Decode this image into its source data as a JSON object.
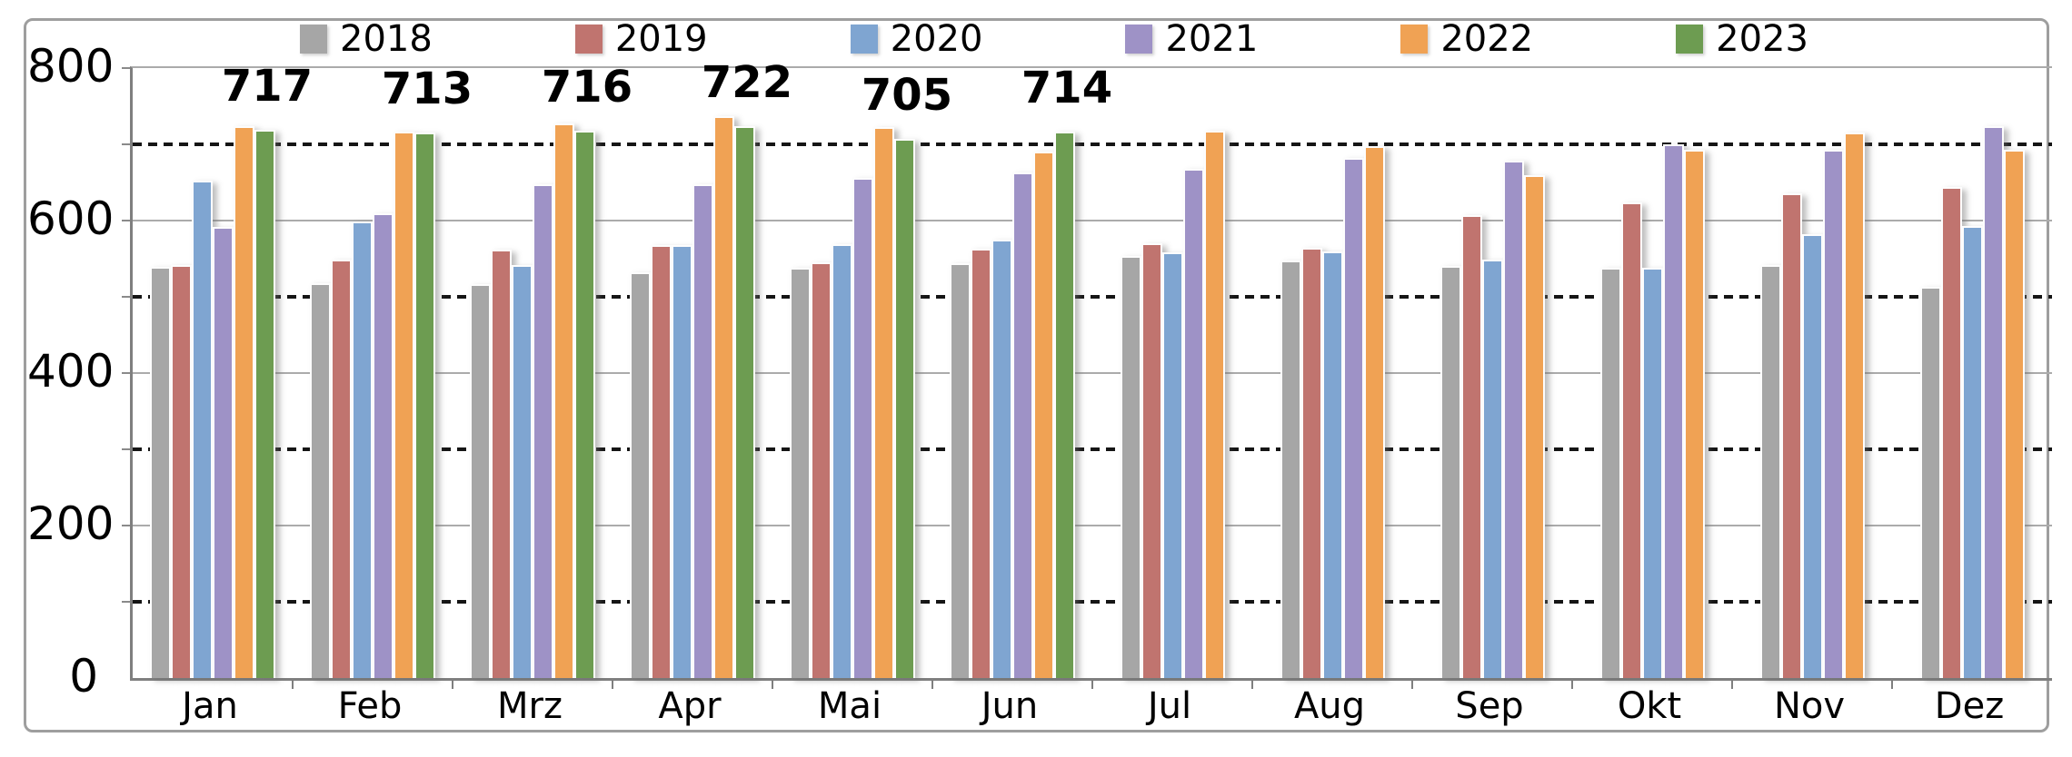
{
  "chart_data": {
    "type": "bar",
    "title": "",
    "xlabel": "",
    "ylabel": "",
    "categories": [
      "Jan",
      "Feb",
      "Mrz",
      "Apr",
      "Mai",
      "Jun",
      "Jul",
      "Aug",
      "Sep",
      "Okt",
      "Nov",
      "Dez"
    ],
    "series": [
      {
        "name": "2018",
        "color": "#a6a6a6",
        "values": [
          537,
          516,
          514,
          530,
          536,
          542,
          551,
          545,
          538,
          536,
          539,
          511
        ]
      },
      {
        "name": "2019",
        "color": "#c0746f",
        "values": [
          539,
          546,
          560,
          565,
          543,
          561,
          568,
          562,
          605,
          622,
          633,
          642
        ]
      },
      {
        "name": "2020",
        "color": "#7fa5d1",
        "values": [
          650,
          597,
          539,
          565,
          567,
          573,
          556,
          557,
          547,
          536,
          580,
          590
        ]
      },
      {
        "name": "2021",
        "color": "#9e92c6",
        "values": [
          589,
          607,
          645,
          645,
          654,
          661,
          666,
          680,
          676,
          698,
          690,
          722
        ]
      },
      {
        "name": "2022",
        "color": "#f0a254",
        "values": [
          721,
          714,
          725,
          735,
          720,
          688,
          715,
          695,
          657,
          690,
          713,
          690
        ]
      },
      {
        "name": "2023",
        "color": "#6d9c51",
        "values": [
          717,
          713,
          716,
          722,
          705,
          714,
          null,
          null,
          null,
          null,
          null,
          null
        ]
      }
    ],
    "bar_labels": {
      "series": "2023",
      "values": [
        717,
        713,
        716,
        722,
        705,
        714,
        null,
        null,
        null,
        null,
        null,
        null
      ]
    },
    "y_axis": {
      "min": 0,
      "max": 800,
      "major_ticks": [
        0,
        200,
        400,
        600,
        800
      ],
      "minor_gridlines": [
        100,
        300,
        500,
        700
      ]
    },
    "legend_position": "top",
    "grid": true
  },
  "style_colors": {
    "frame_border": "#9e9e9e",
    "major_gridline": "#ababab",
    "axis_line": "#7f7f7f",
    "minor_gridline_dash": "#151515",
    "label_text": "#000000"
  }
}
